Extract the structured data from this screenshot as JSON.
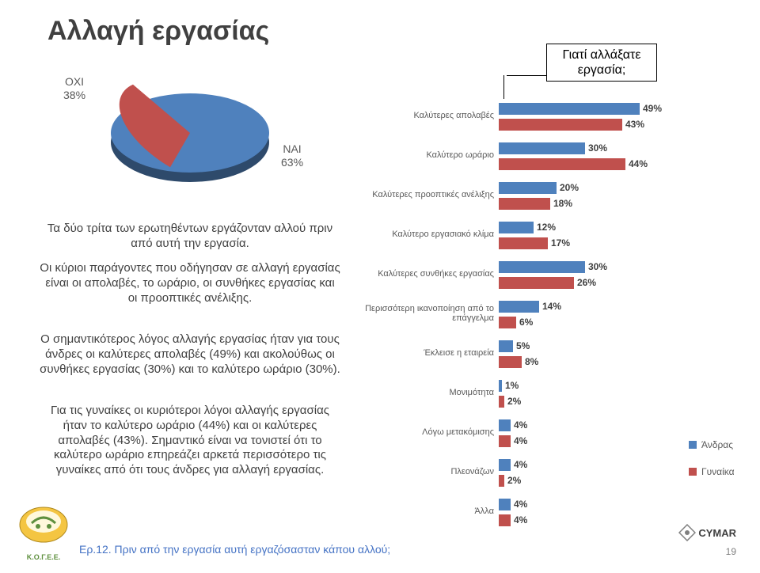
{
  "title": "Αλλαγή εργασίας",
  "pie": {
    "type": "pie-3d",
    "segments": [
      {
        "label": "ΟΧΙ",
        "value": 38,
        "color": "#c0504d",
        "display": "ΟΧΙ\n38%"
      },
      {
        "label": "ΝΑΙ",
        "value": 63,
        "color": "#4f81bd",
        "display": "ΝΑΙ\n63%"
      }
    ],
    "background": "#ffffff",
    "label_color": "#595959",
    "label_fontsize": 14
  },
  "bar": {
    "type": "grouped-bar-horizontal",
    "title": "Γιατί αλλάξατε\nεργασία;",
    "title_fontsize": 16,
    "max": 55,
    "axis_color": "#ffffff",
    "label_fontsize": 11,
    "value_fontsize": 12,
    "value_color": "#404040",
    "categories": [
      "Καλύτερες απολαβές",
      "Καλύτερο ωράριο",
      "Καλύτερες προοπτικές ανέλιξης",
      "Καλύτερο εργασιακό κλίμα",
      "Καλύτερες συνθήκες εργασίας",
      "Περισσότερη ικανοποίηση από το επάγγελμα",
      "Έκλεισε η εταιρεία",
      "Μονιμότητα",
      "Λόγω μετακόμισης",
      "Πλεονάζων",
      "Άλλα"
    ],
    "series": [
      {
        "name": "Άνδρας",
        "color": "#4f81bd",
        "values": [
          49,
          30,
          20,
          12,
          30,
          14,
          5,
          1,
          4,
          4,
          4
        ]
      },
      {
        "name": "Γυναίκα",
        "color": "#c0504d",
        "values": [
          43,
          44,
          18,
          17,
          26,
          6,
          8,
          2,
          4,
          2,
          4
        ]
      }
    ],
    "legend": [
      "Άνδρας",
      "Γυναίκα"
    ]
  },
  "paragraphs": {
    "p1": "Τα δύο τρίτα των ερωτηθέντων εργάζονταν αλλού πριν από αυτή την εργασία.",
    "p2": "Οι κύριοι παράγοντες που οδήγησαν σε αλλαγή εργασίας είναι οι απολαβές, το ωράριο, οι συνθήκες εργασίας και οι προοπτικές ανέλιξης.",
    "p3": "Ο σημαντικότερος λόγος αλλαγής εργασίας ήταν για τους άνδρες οι καλύτερες απολαβές (49%) και ακολούθως οι συνθήκες εργασίας (30%) και το καλύτερο ωράριο (30%).",
    "p4": "Για τις γυναίκες οι κυριότεροι λόγοι αλλαγής εργασίας ήταν το καλύτερο ωράριο (44%) και οι καλύτερες απολαβές (43%). Σημαντικό είναι να τονιστεί ότι το καλύτερο ωράριο επηρεάζει αρκετά περισσότερο τις γυναίκες από ότι τους άνδρες για αλλαγή εργασίας."
  },
  "footer_question": "Ερ.12. Πριν από την εργασία αυτή εργαζόσασταν κάπου αλλού;",
  "page_number": "19",
  "brand_right": "CYMAR",
  "brand_left": "Κ.Ο.Γ.Ε.Ε.",
  "colors": {
    "title": "#404040",
    "text": "#404040",
    "footer": "#4472c4",
    "male": "#4f81bd",
    "female": "#c0504d",
    "background": "#ffffff"
  }
}
